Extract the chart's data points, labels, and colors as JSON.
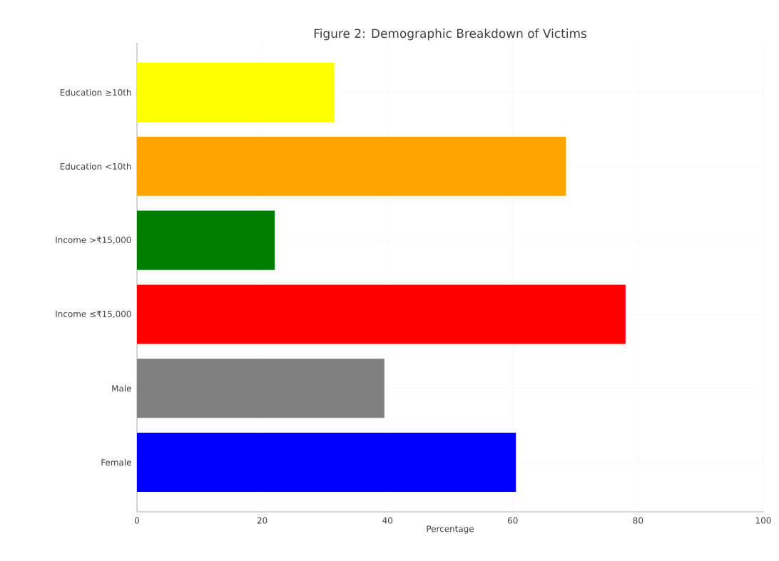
{
  "chart_data": {
    "type": "bar",
    "orientation": "horizontal",
    "title": "Figure 2: Demographic Breakdown of Victims",
    "xlabel": "Percentage",
    "categories": [
      "Education ≥10th",
      "Education <10th",
      "Income >₹15,000",
      "Income ≤₹15,000",
      "Male",
      "Female"
    ],
    "values": [
      31.5,
      68.5,
      22,
      78,
      39.5,
      60.5
    ],
    "colors": [
      "#ffff00",
      "#ffa500",
      "#008000",
      "#ff0000",
      "#808080",
      "#0000ff"
    ],
    "xlim": [
      0,
      100
    ],
    "xticks": [
      0,
      20,
      40,
      60,
      80,
      100
    ],
    "grid": true
  }
}
